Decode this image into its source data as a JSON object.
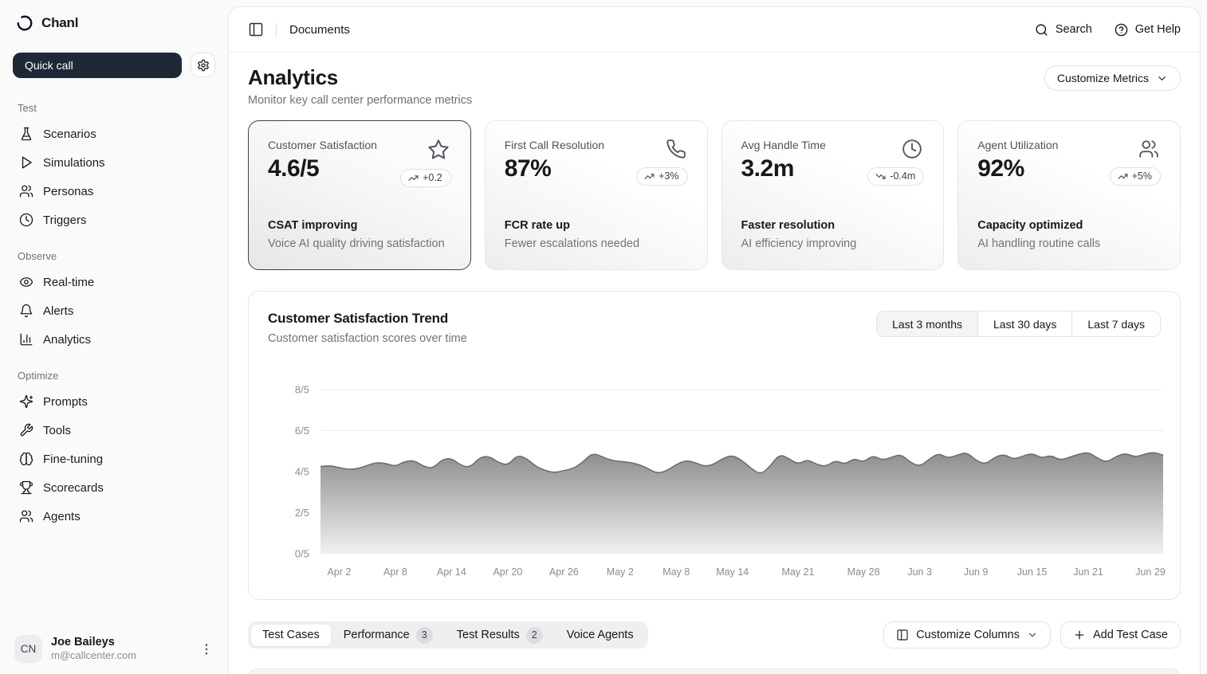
{
  "brand": {
    "name": "Chanl"
  },
  "sidebar": {
    "quick_call_label": "Quick call",
    "sections": [
      {
        "label": "Test",
        "items": [
          {
            "icon": "flask-icon",
            "label": "Scenarios"
          },
          {
            "icon": "play-icon",
            "label": "Simulations"
          },
          {
            "icon": "users-icon",
            "label": "Personas"
          },
          {
            "icon": "clock-icon",
            "label": "Triggers"
          }
        ]
      },
      {
        "label": "Observe",
        "items": [
          {
            "icon": "eye-icon",
            "label": "Real-time"
          },
          {
            "icon": "bell-icon",
            "label": "Alerts"
          },
          {
            "icon": "bar-chart-icon",
            "label": "Analytics"
          }
        ]
      },
      {
        "label": "Optimize",
        "items": [
          {
            "icon": "sparkles-icon",
            "label": "Prompts"
          },
          {
            "icon": "wrench-icon",
            "label": "Tools"
          },
          {
            "icon": "brain-icon",
            "label": "Fine-tuning"
          },
          {
            "icon": "trophy-icon",
            "label": "Scorecards"
          },
          {
            "icon": "users-icon",
            "label": "Agents"
          }
        ]
      }
    ],
    "user": {
      "initials": "CN",
      "name": "Joe Baileys",
      "email": "m@callcenter.com"
    }
  },
  "header": {
    "title": "Documents",
    "search_label": "Search",
    "help_label": "Get Help"
  },
  "page": {
    "title": "Analytics",
    "subtitle": "Monitor key call center performance metrics",
    "customize_metrics_label": "Customize Metrics"
  },
  "metric_cards": [
    {
      "title": "Customer Satisfaction",
      "value": "4.6/5",
      "icon": "star-icon",
      "trend": "up",
      "delta": "+0.2",
      "headline": "CSAT improving",
      "description": "Voice AI quality driving satisfaction",
      "selected": true
    },
    {
      "title": "First Call Resolution",
      "value": "87%",
      "icon": "phone-icon",
      "trend": "up",
      "delta": "+3%",
      "headline": "FCR rate up",
      "description": "Fewer escalations needed",
      "selected": false
    },
    {
      "title": "Avg Handle Time",
      "value": "3.2m",
      "icon": "clock-icon",
      "trend": "down",
      "delta": "-0.4m",
      "headline": "Faster resolution",
      "description": "AI efficiency improving",
      "selected": false
    },
    {
      "title": "Agent Utilization",
      "value": "92%",
      "icon": "users-icon",
      "trend": "up",
      "delta": "+5%",
      "headline": "Capacity optimized",
      "description": "AI handling routine calls",
      "selected": false
    }
  ],
  "chart_card": {
    "title": "Customer Satisfaction Trend",
    "subtitle": "Customer satisfaction scores over time",
    "ranges": [
      "Last 3 months",
      "Last 30 days",
      "Last 7 days"
    ],
    "active_range": "Last 3 months"
  },
  "chart_data": {
    "type": "area",
    "title": "Customer Satisfaction Trend",
    "xlabel": "",
    "ylabel": "",
    "ylim": [
      0,
      8
    ],
    "grid": true,
    "legend": false,
    "y_ticks": [
      {
        "value": 0,
        "label": "0/5"
      },
      {
        "value": 2,
        "label": "2/5"
      },
      {
        "value": 4,
        "label": "4/5"
      },
      {
        "value": 6,
        "label": "6/5"
      },
      {
        "value": 8,
        "label": "8/5"
      }
    ],
    "x_domain_days": [
      0,
      90
    ],
    "x_ticks": [
      {
        "label": "Apr 2",
        "day": 2
      },
      {
        "label": "Apr 8",
        "day": 8
      },
      {
        "label": "Apr 14",
        "day": 14
      },
      {
        "label": "Apr 20",
        "day": 20
      },
      {
        "label": "Apr 26",
        "day": 26
      },
      {
        "label": "May 2",
        "day": 32
      },
      {
        "label": "May 8",
        "day": 38
      },
      {
        "label": "May 14",
        "day": 44
      },
      {
        "label": "May 21",
        "day": 51
      },
      {
        "label": "May 28",
        "day": 58
      },
      {
        "label": "Jun 3",
        "day": 64
      },
      {
        "label": "Jun 9",
        "day": 70
      },
      {
        "label": "Jun 15",
        "day": 76
      },
      {
        "label": "Jun 21",
        "day": 82
      },
      {
        "label": "Jun 29",
        "day": 90
      }
    ],
    "series": [
      {
        "name": "Customer satisfaction score (out of 5)",
        "values": [
          4.25,
          4.3,
          4.2,
          4.1,
          4.15,
          4.3,
          4.45,
          4.4,
          4.25,
          4.5,
          4.55,
          4.25,
          4.15,
          4.6,
          4.65,
          4.3,
          4.2,
          4.7,
          4.75,
          4.45,
          4.3,
          4.8,
          4.65,
          4.25,
          4.05,
          3.95,
          4.05,
          4.15,
          4.45,
          4.9,
          4.75,
          4.55,
          4.5,
          4.45,
          4.35,
          4.15,
          3.9,
          4.05,
          4.35,
          4.55,
          4.45,
          4.25,
          4.35,
          4.65,
          4.8,
          4.55,
          4.15,
          3.85,
          4.25,
          4.85,
          4.65,
          4.35,
          4.6,
          4.35,
          4.25,
          4.55,
          4.35,
          4.65,
          4.45,
          4.8,
          4.55,
          4.7,
          4.85,
          4.45,
          4.25,
          4.6,
          4.9,
          4.65,
          4.8,
          4.95,
          4.55,
          4.35,
          4.7,
          4.85,
          4.6,
          4.75,
          4.9,
          4.65,
          4.8,
          4.55,
          4.7,
          4.85,
          4.95,
          4.65,
          4.45,
          4.75,
          4.9,
          4.7,
          4.85,
          4.95,
          4.8
        ]
      }
    ],
    "line_color": "#6e6e6e",
    "fill_top_color": "#8e8e8e",
    "fill_bottom_color": "#f0f0f0",
    "grid_color": "#ededed",
    "tick_color": "#8a8a93"
  },
  "tabs": [
    {
      "label": "Test Cases",
      "active": true
    },
    {
      "label": "Performance",
      "badge": "3",
      "active": false
    },
    {
      "label": "Test Results",
      "badge": "2",
      "active": false
    },
    {
      "label": "Voice Agents",
      "active": false
    }
  ],
  "actions": {
    "customize_columns_label": "Customize Columns",
    "add_test_case_label": "Add Test Case"
  }
}
